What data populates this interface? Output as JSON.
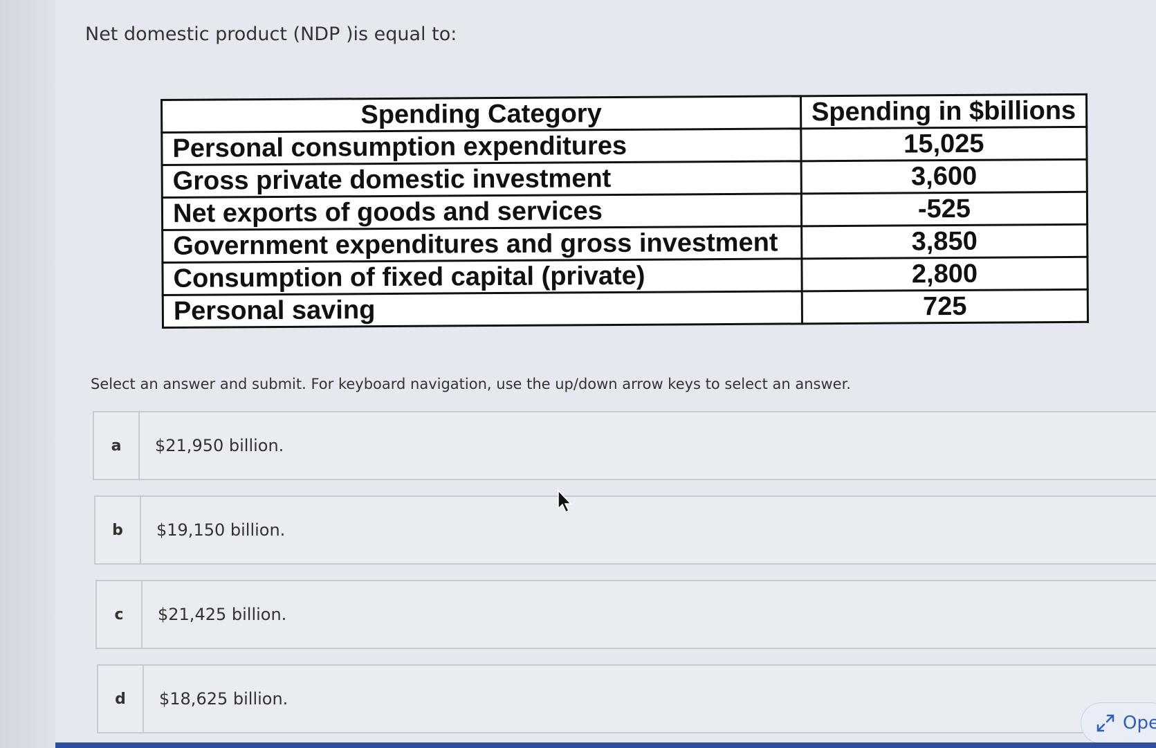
{
  "question": {
    "title": "Net domestic product (NDP )is equal to:"
  },
  "table": {
    "headers": [
      "Spending Category",
      "Spending in $billions"
    ],
    "rows": [
      {
        "category": "Personal consumption expenditures",
        "value": "15,025"
      },
      {
        "category": "Gross private domestic investment",
        "value": "3,600"
      },
      {
        "category": "Net exports of goods and services",
        "value": "-525"
      },
      {
        "category": "Government expenditures and gross investment",
        "value": "3,850"
      },
      {
        "category": "Consumption of fixed capital (private)",
        "value": "2,800"
      },
      {
        "category": "Personal saving",
        "value": "725"
      }
    ]
  },
  "instructions": "Select an answer and submit. For keyboard navigation, use the up/down arrow keys to select an answer.",
  "options": [
    {
      "letter": "a",
      "text": "$21,950 billion."
    },
    {
      "letter": "b",
      "text": "$19,150 billion."
    },
    {
      "letter": "c",
      "text": "$21,425 billion."
    },
    {
      "letter": "d",
      "text": "$18,625 billion."
    }
  ],
  "open_button": {
    "label": "Ope",
    "icon": "expand-icon"
  },
  "colors": {
    "accent": "#2f5fb8",
    "bottom_bar": "#2c4f9e"
  }
}
